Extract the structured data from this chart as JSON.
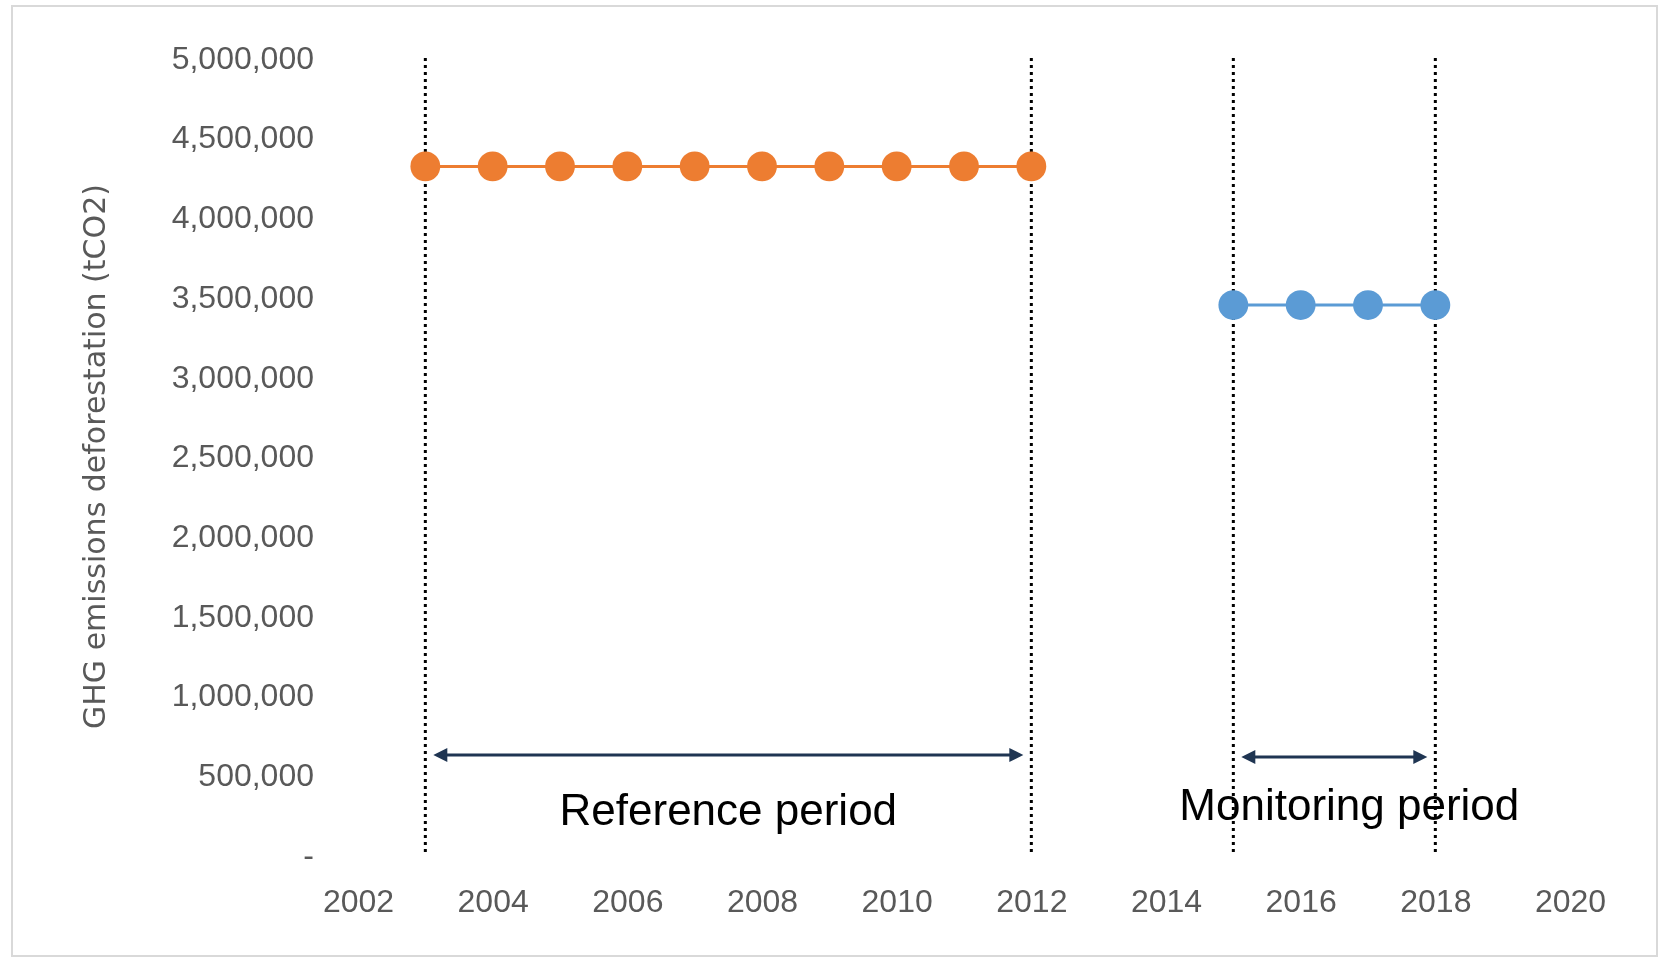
{
  "chart_data": {
    "type": "line",
    "ylabel": "GHG emissions deforestation (tCO2)",
    "xlim": [
      2002,
      2020
    ],
    "xticks": [
      2002,
      2004,
      2006,
      2008,
      2010,
      2012,
      2014,
      2016,
      2018,
      2020
    ],
    "ylim": [
      0,
      5000000
    ],
    "yticks": [
      {
        "value": 0,
        "label": "-"
      },
      {
        "value": 500000,
        "label": "500,000"
      },
      {
        "value": 1000000,
        "label": "1,000,000"
      },
      {
        "value": 1500000,
        "label": "1,500,000"
      },
      {
        "value": 2000000,
        "label": "2,000,000"
      },
      {
        "value": 2500000,
        "label": "2,500,000"
      },
      {
        "value": 3000000,
        "label": "3,000,000"
      },
      {
        "value": 3500000,
        "label": "3,500,000"
      },
      {
        "value": 4000000,
        "label": "4,000,000"
      },
      {
        "value": 4500000,
        "label": "4,500,000"
      },
      {
        "value": 5000000,
        "label": "5,000,000"
      }
    ],
    "grid": false,
    "marker": "circle",
    "line_style": "solid",
    "series": [
      {
        "color": "#ed7d31",
        "x": [
          2003,
          2004,
          2005,
          2006,
          2007,
          2008,
          2009,
          2010,
          2011,
          2012
        ],
        "values": [
          4320000,
          4320000,
          4320000,
          4320000,
          4320000,
          4320000,
          4320000,
          4320000,
          4320000,
          4320000
        ]
      },
      {
        "color": "#5b9bd5",
        "x": [
          2015,
          2016,
          2017,
          2018
        ],
        "values": [
          3450000,
          3450000,
          3450000,
          3450000
        ]
      }
    ],
    "ref_lines": [
      {
        "axis": "x",
        "value": 2003,
        "color": "#000000",
        "line_style": "dotted"
      },
      {
        "axis": "x",
        "value": 2012,
        "color": "#000000",
        "line_style": "dotted"
      },
      {
        "axis": "x",
        "value": 2015,
        "color": "#000000",
        "line_style": "dotted"
      },
      {
        "axis": "x",
        "value": 2018,
        "color": "#000000",
        "line_style": "dotted"
      }
    ],
    "annotations": [
      "Reference period",
      "Monitoring period"
    ]
  }
}
